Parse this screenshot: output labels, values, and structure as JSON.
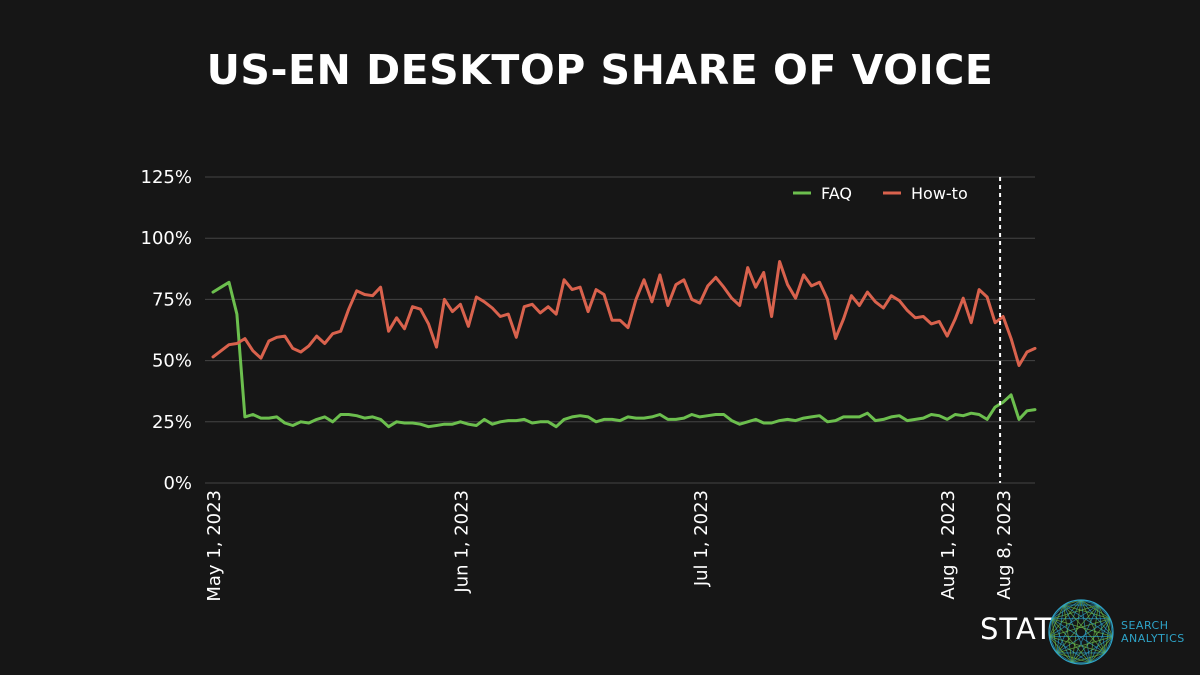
{
  "title": "US-EN DESKTOP SHARE OF VOICE",
  "colors": {
    "background": "#161616",
    "faq": "#6cbf4e",
    "howto": "#d9624d",
    "grid": "#444444",
    "text": "#ffffff",
    "logo_accent": "#2ea3c7"
  },
  "logo": {
    "word": "STAT",
    "sub_line1": "SEARCH",
    "sub_line2": "ANALYTICS"
  },
  "chart_data": {
    "type": "line",
    "title": "US-EN DESKTOP SHARE OF VOICE",
    "xlabel": "",
    "ylabel": "",
    "ylim": [
      0,
      125
    ],
    "yticks": [
      0,
      25,
      50,
      75,
      100,
      125
    ],
    "ytick_labels": [
      "0%",
      "25%",
      "50%",
      "75%",
      "100%",
      "125%"
    ],
    "x_start": "2023-05-01",
    "x_end": "2023-08-15",
    "xticks": [
      {
        "label": "May 1, 2023",
        "day": 0
      },
      {
        "label": "Jun 1, 2023",
        "day": 31
      },
      {
        "label": "Jul 1, 2023",
        "day": 61
      },
      {
        "label": "Aug 1, 2023",
        "day": 92
      },
      {
        "label": "Aug 8, 2023",
        "day": 99
      }
    ],
    "vline": {
      "label": "Aug 8, 2023",
      "day": 99
    },
    "legend": "top-right",
    "series": [
      {
        "name": "FAQ",
        "color": "#6cbf4e",
        "values": [
          78,
          80,
          82,
          69,
          27,
          28,
          26.5,
          26.5,
          27,
          24.5,
          23.5,
          25,
          24.5,
          26,
          27,
          25,
          28,
          28,
          27.5,
          26.5,
          27,
          26,
          23,
          25,
          24.5,
          24.5,
          24,
          23,
          23.5,
          24,
          24,
          25,
          24,
          23.5,
          26,
          24,
          25,
          25.5,
          25.5,
          26,
          24.5,
          25,
          25,
          23,
          26,
          27,
          27.5,
          27,
          25,
          26,
          26,
          25.5,
          27,
          26.5,
          26.5,
          27,
          28,
          26,
          26,
          26.5,
          28,
          27,
          27.5,
          28,
          28,
          25.5,
          24,
          25,
          26,
          24.5,
          24.5,
          25.5,
          26,
          25.5,
          26.5,
          27,
          27.5,
          25,
          25.5,
          27,
          27,
          27,
          28.5,
          25.5,
          26,
          27,
          27.5,
          25.5,
          26,
          26.5,
          28,
          27.5,
          26,
          28,
          27.5,
          28.5,
          28,
          26,
          31,
          33,
          36,
          26,
          29.5,
          30
        ]
      },
      {
        "name": "How-to",
        "color": "#d9624d",
        "values": [
          51.5,
          54,
          56.5,
          57,
          59,
          54,
          51,
          58,
          59.5,
          60,
          55,
          53.5,
          56,
          60,
          57,
          61,
          62,
          71,
          78.5,
          77,
          76.5,
          80,
          62,
          67.5,
          63,
          72,
          71,
          65,
          55.5,
          75,
          70,
          73,
          64,
          76,
          74,
          71.5,
          68,
          69,
          59.5,
          72,
          73,
          69.5,
          72,
          69,
          83,
          79,
          80,
          70,
          79,
          77,
          66.5,
          66.5,
          63.5,
          75,
          83,
          74,
          85,
          72.5,
          81,
          83,
          75,
          73.5,
          80.5,
          84,
          80,
          75.5,
          72.5,
          88,
          80,
          86,
          68,
          90.5,
          81,
          75.5,
          85,
          80.5,
          82,
          75,
          59,
          67,
          76.5,
          72.5,
          78,
          74,
          71.5,
          76.5,
          74.5,
          70.5,
          67.5,
          68,
          65,
          66,
          60,
          67,
          75.5,
          65.5,
          79,
          76,
          65.5,
          68,
          59,
          48,
          53.5,
          55
        ]
      }
    ]
  }
}
